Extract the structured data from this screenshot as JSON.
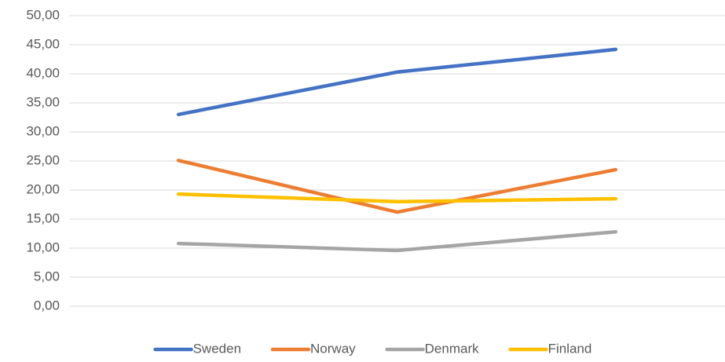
{
  "chart_data": {
    "type": "line",
    "categories": [
      null,
      null,
      null
    ],
    "series": [
      {
        "name": "Sweden",
        "color": "#4472c4",
        "values": [
          33.0,
          40.3,
          44.2
        ]
      },
      {
        "name": "Norway",
        "color": "#ed7d31",
        "values": [
          25.1,
          16.2,
          23.5
        ]
      },
      {
        "name": "Denmark",
        "color": "#a5a5a5",
        "values": [
          10.8,
          9.6,
          12.8
        ]
      },
      {
        "name": "Finland",
        "color": "#ffc000",
        "values": [
          19.3,
          18.0,
          18.5
        ]
      }
    ],
    "ylim": [
      0,
      50
    ],
    "yticks": [
      {
        "value": 0,
        "label": "0,00"
      },
      {
        "value": 5,
        "label": "5,00"
      },
      {
        "value": 10,
        "label": "10,00"
      },
      {
        "value": 15,
        "label": "15,00"
      },
      {
        "value": 20,
        "label": "20,00"
      },
      {
        "value": 25,
        "label": "25,00"
      },
      {
        "value": 30,
        "label": "30,00"
      },
      {
        "value": 35,
        "label": "35,00"
      },
      {
        "value": 40,
        "label": "40,00"
      },
      {
        "value": 45,
        "label": "45,00"
      },
      {
        "value": 50,
        "label": "50,00"
      }
    ],
    "grid": true,
    "legend": "bottom"
  }
}
